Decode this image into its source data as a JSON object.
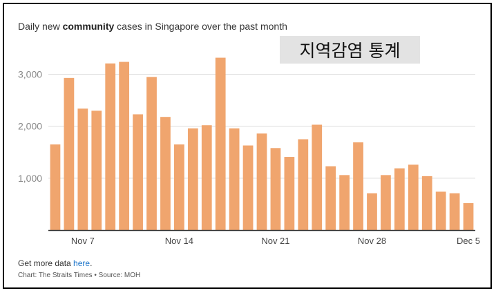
{
  "title": {
    "prefix": "Daily new ",
    "bold": "community",
    "suffix": " cases in Singapore over the past month"
  },
  "overlay_label": "지역감염 통계",
  "footer": {
    "more_prefix": "Get more data ",
    "link_text": "here",
    "more_suffix": ".",
    "credit": "Chart: The Straits Times • Source: MOH"
  },
  "colors": {
    "bar": "#f0a56e",
    "grid": "#dddddd",
    "axis": "#333333",
    "tick_text": "#888888",
    "x_tick_text": "#444444"
  },
  "chart_data": {
    "type": "bar",
    "title": "Daily new community cases in Singapore over the past month",
    "xlabel": "",
    "ylabel": "",
    "ylim": [
      0,
      3500
    ],
    "grid": true,
    "y_ticks": [
      1000,
      2000,
      3000
    ],
    "y_tick_labels": [
      "1,000",
      "2,000",
      "3,000"
    ],
    "x_tick_labels": [
      {
        "label": "Nov 7",
        "index": 2.5
      },
      {
        "label": "Nov 14",
        "index": 9.5
      },
      {
        "label": "Nov 21",
        "index": 16.5
      },
      {
        "label": "Nov 28",
        "index": 23.5
      },
      {
        "label": "Dec 5",
        "index": 30.5
      }
    ],
    "values": [
      1650,
      2930,
      2340,
      2300,
      3210,
      3240,
      2230,
      2950,
      2180,
      1650,
      1960,
      2020,
      3320,
      1960,
      1630,
      1860,
      1580,
      1410,
      1750,
      2030,
      1230,
      1060,
      1690,
      710,
      1060,
      1190,
      1260,
      1040,
      740,
      710,
      520
    ]
  }
}
